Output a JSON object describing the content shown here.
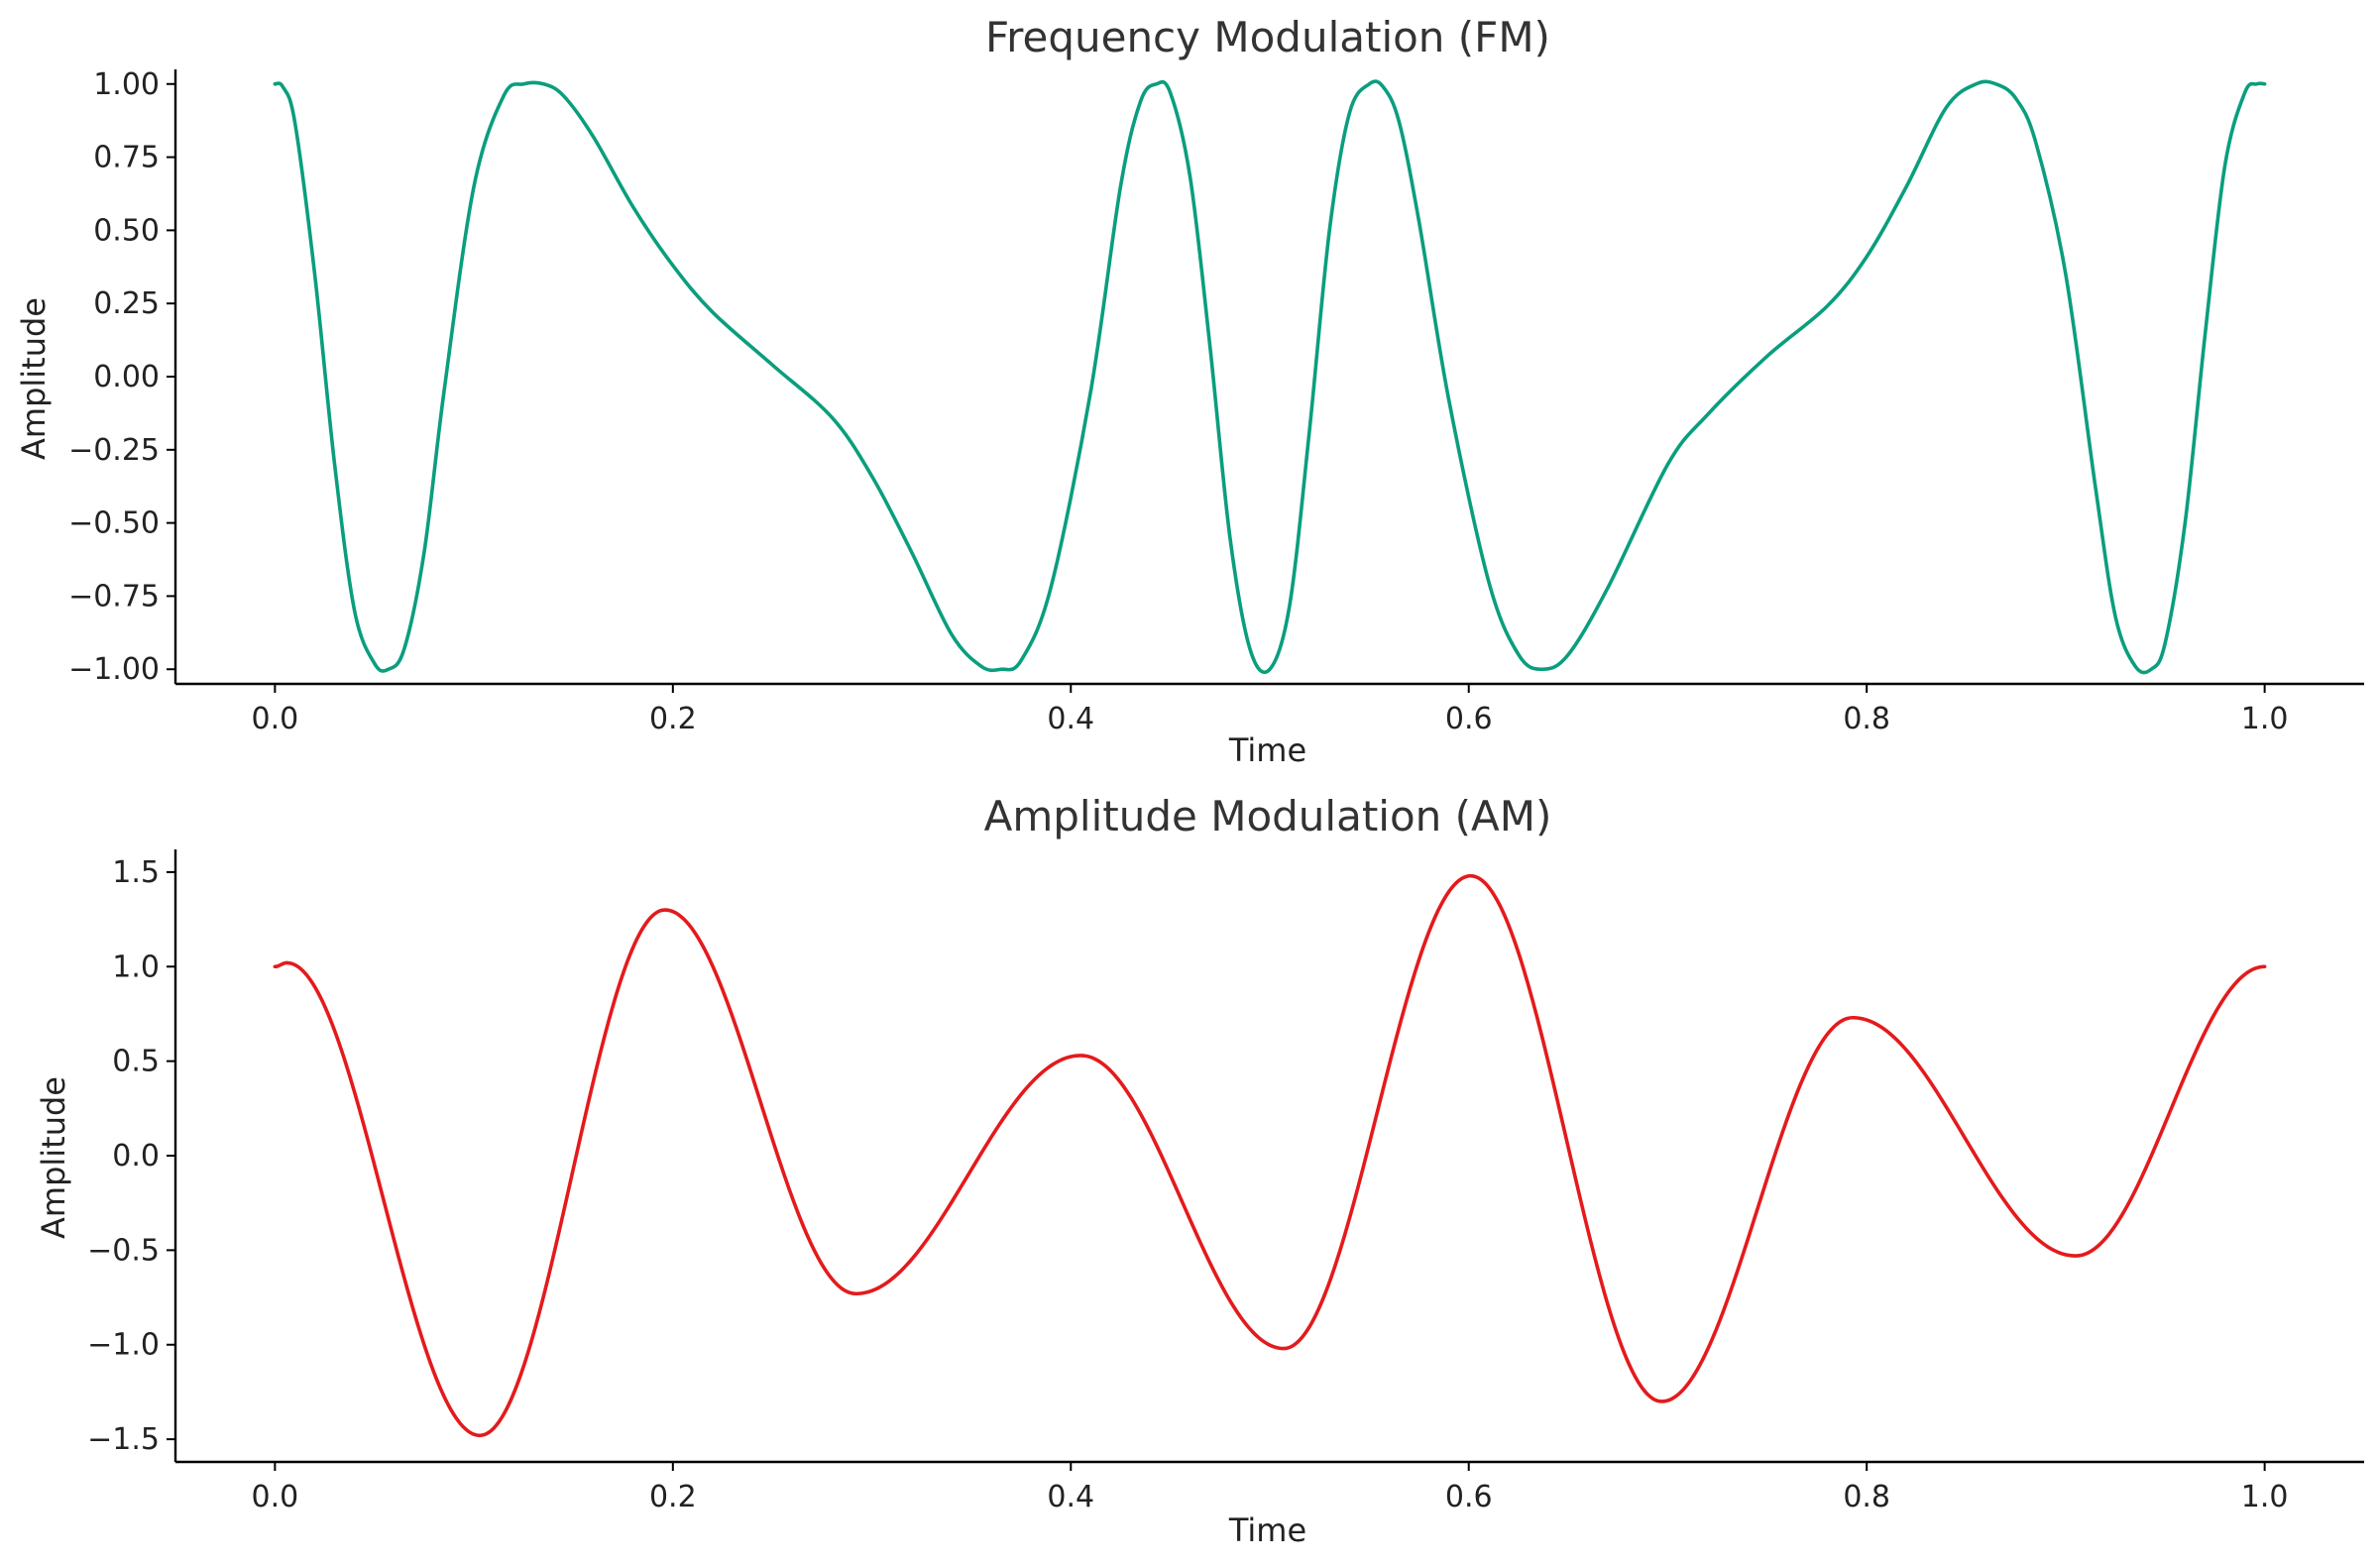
{
  "chart_data": [
    {
      "type": "line",
      "title": "Frequency Modulation (FM)",
      "xlabel": "Time",
      "ylabel": "Amplitude",
      "xlim": [
        -0.05,
        1.05
      ],
      "ylim": [
        -1.05,
        1.05
      ],
      "xticks": [
        0.0,
        0.2,
        0.4,
        0.6,
        0.8,
        1.0
      ],
      "xtick_labels": [
        "0.0",
        "0.2",
        "0.4",
        "0.6",
        "0.8",
        "1.0"
      ],
      "yticks": [
        1.0,
        0.75,
        0.5,
        0.25,
        0.0,
        -0.25,
        -0.5,
        -0.75,
        -1.0
      ],
      "ytick_labels": [
        "1.00",
        "0.75",
        "0.50",
        "0.25",
        "0.00",
        "−0.25",
        "−0.50",
        "−0.75",
        "−1.00"
      ],
      "grid": false,
      "color": "#0a9e7e",
      "series": [
        {
          "x": [
            0,
            0.004,
            0.01,
            0.02,
            0.03,
            0.04,
            0.05,
            0.057,
            0.065,
            0.075,
            0.085,
            0.1,
            0.115,
            0.125,
            0.135,
            0.145,
            0.16,
            0.18,
            0.2,
            0.22,
            0.25,
            0.28,
            0.3,
            0.32,
            0.34,
            0.355,
            0.365,
            0.375,
            0.39,
            0.41,
            0.425,
            0.435,
            0.443,
            0.45,
            0.46,
            0.47,
            0.48,
            0.49,
            0.5,
            0.51,
            0.52,
            0.53,
            0.54,
            0.55,
            0.557,
            0.565,
            0.575,
            0.59,
            0.61,
            0.625,
            0.637,
            0.65,
            0.67,
            0.7,
            0.72,
            0.75,
            0.78,
            0.8,
            0.82,
            0.84,
            0.855,
            0.865,
            0.875,
            0.885,
            0.9,
            0.915,
            0.925,
            0.935,
            0.943,
            0.95,
            0.96,
            0.97,
            0.98,
            0.99,
            0.996,
            1.0
          ],
          "y": [
            1.0,
            0.99,
            0.87,
            0.35,
            -0.3,
            -0.8,
            -0.98,
            -1.0,
            -0.93,
            -0.6,
            -0.05,
            0.65,
            0.96,
            1.0,
            1.0,
            0.96,
            0.82,
            0.58,
            0.38,
            0.22,
            0.04,
            -0.14,
            -0.34,
            -0.6,
            -0.88,
            -0.99,
            -1.0,
            -0.97,
            -0.72,
            -0.05,
            0.65,
            0.94,
            1.0,
            0.97,
            0.68,
            0.1,
            -0.55,
            -0.93,
            -1.0,
            -0.78,
            -0.18,
            0.5,
            0.9,
            1.0,
            0.99,
            0.87,
            0.53,
            -0.08,
            -0.7,
            -0.95,
            -1.0,
            -0.95,
            -0.72,
            -0.3,
            -0.13,
            0.07,
            0.24,
            0.41,
            0.65,
            0.92,
            1.0,
            1.0,
            0.95,
            0.8,
            0.35,
            -0.38,
            -0.82,
            -0.99,
            -1.0,
            -0.91,
            -0.5,
            0.14,
            0.72,
            0.97,
            1.0,
            1.0
          ]
        }
      ]
    },
    {
      "type": "line",
      "title": "Amplitude Modulation (AM)",
      "xlabel": "Time",
      "ylabel": "Amplitude",
      "xlim": [
        -0.05,
        1.05
      ],
      "ylim": [
        -1.62,
        1.62
      ],
      "xticks": [
        0.0,
        0.2,
        0.4,
        0.6,
        0.8,
        1.0
      ],
      "xtick_labels": [
        "0.0",
        "0.2",
        "0.4",
        "0.6",
        "0.8",
        "1.0"
      ],
      "yticks": [
        1.5,
        1.0,
        0.5,
        0.0,
        -0.5,
        -1.0,
        -1.5
      ],
      "ytick_labels": [
        "1.5",
        "1.0",
        "0.5",
        "0.0",
        "−0.5",
        "−1.0",
        "−1.5"
      ],
      "grid": false,
      "color": "#e41a1c",
      "series": [
        {
          "amplitude_peaks_x": [
            0.0,
            0.006,
            0.103,
            0.196,
            0.292,
            0.405,
            0.507,
            0.601,
            0.697,
            0.793,
            0.905,
            1.0
          ],
          "amplitude_peaks_y": [
            1.0,
            1.02,
            -1.48,
            1.3,
            -0.73,
            0.53,
            -1.02,
            1.48,
            -1.3,
            0.73,
            -0.53,
            1.0
          ]
        }
      ]
    }
  ]
}
